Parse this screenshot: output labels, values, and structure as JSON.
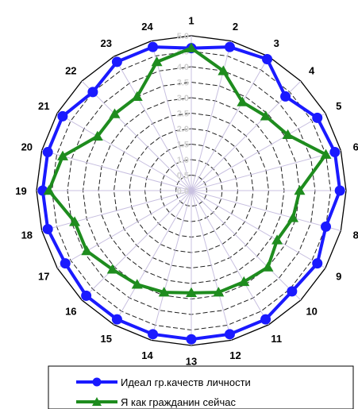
{
  "chart_data": {
    "type": "radar",
    "title": "",
    "categories": [
      "1",
      "2",
      "3",
      "4",
      "5",
      "6",
      "7",
      "8",
      "9",
      "10",
      "11",
      "12",
      "13",
      "14",
      "15",
      "16",
      "17",
      "18",
      "19",
      "20",
      "21",
      "22",
      "23",
      "24"
    ],
    "r_ticks": [
      "0.0",
      "0.5",
      "1.0",
      "1.5",
      "2.0",
      "2.5",
      "3.0",
      "3.5",
      "4.0",
      "4.5",
      "5.0"
    ],
    "r_range": [
      0,
      5.0
    ],
    "grid": true,
    "legend_position": "bottom",
    "series": [
      {
        "name": "Идеал гр.качеств личности",
        "color": "#1a1aff",
        "marker": "circle",
        "values": [
          4.6,
          4.8,
          4.9,
          4.3,
          4.7,
          4.8,
          4.8,
          4.5,
          4.7,
          4.6,
          4.8,
          4.8,
          4.8,
          4.8,
          4.8,
          4.8,
          4.7,
          4.8,
          4.8,
          4.8,
          4.8,
          4.5,
          4.8,
          4.8
        ]
      },
      {
        "name": "Я как гражданин сейчас",
        "color": "#1e8c1e",
        "marker": "triangle",
        "values": [
          4.6,
          4.0,
          3.3,
          3.4,
          3.6,
          4.5,
          3.5,
          3.4,
          3.2,
          3.5,
          3.4,
          3.4,
          3.3,
          3.4,
          3.5,
          3.6,
          3.9,
          3.9,
          4.6,
          4.3,
          3.5,
          3.5,
          3.5,
          4.3
        ]
      }
    ]
  }
}
